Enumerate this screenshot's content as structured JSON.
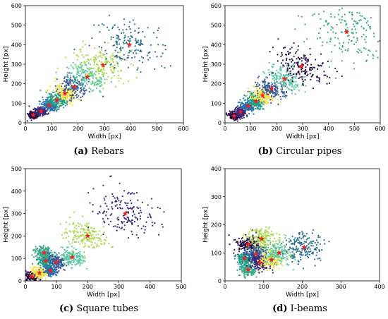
{
  "chart_data": [
    {
      "type": "scatter",
      "caption_letter": "(a)",
      "caption_text": " Rebars",
      "xlabel": "Width [px]",
      "ylabel": "Height [px]",
      "xlim": [
        0,
        600
      ],
      "ylim": [
        0,
        600
      ],
      "xticks": [
        0,
        100,
        200,
        300,
        400,
        500,
        600
      ],
      "yticks": [
        0,
        100,
        200,
        300,
        400,
        500,
        600
      ],
      "grid": false,
      "centroids": [
        [
          30,
          40
        ],
        [
          60,
          60
        ],
        [
          90,
          90
        ],
        [
          120,
          115
        ],
        [
          150,
          150
        ],
        [
          185,
          185
        ],
        [
          235,
          235
        ],
        [
          295,
          295
        ],
        [
          395,
          400
        ]
      ],
      "cluster_colors": [
        "#2c0f4a",
        "#3b2a7a",
        "#2f6ea8",
        "#1f9e8a",
        "#f5e04a",
        "#3b5a9a",
        "#5bc8a0",
        "#a8d84a",
        "#2a6f8f"
      ]
    },
    {
      "type": "scatter",
      "caption_letter": "(b)",
      "caption_text": " Circular pipes",
      "xlabel": "Width [px]",
      "ylabel": "Height [px]",
      "xlim": [
        0,
        600
      ],
      "ylim": [
        0,
        600
      ],
      "xticks": [
        0,
        100,
        200,
        300,
        400,
        500,
        600
      ],
      "yticks": [
        0,
        100,
        200,
        300,
        400,
        500,
        600
      ],
      "grid": false,
      "centroids": [
        [
          35,
          35
        ],
        [
          60,
          55
        ],
        [
          90,
          85
        ],
        [
          120,
          110
        ],
        [
          145,
          140
        ],
        [
          180,
          175
        ],
        [
          230,
          225
        ],
        [
          295,
          290
        ],
        [
          470,
          465
        ]
      ],
      "cluster_colors": [
        "#2c0f4a",
        "#3b2a7a",
        "#2f6ea8",
        "#1f9e8a",
        "#f5e04a",
        "#3b5a9a",
        "#5bc8a0",
        "#2c0f4a",
        "#3aa88a"
      ]
    },
    {
      "type": "scatter",
      "caption_letter": "(c)",
      "caption_text": " Square tubes",
      "xlabel": "Width [px]",
      "ylabel": "Height [px]",
      "xlim": [
        0,
        500
      ],
      "ylim": [
        0,
        500
      ],
      "xticks": [
        0,
        100,
        200,
        300,
        400,
        500
      ],
      "yticks": [
        0,
        100,
        200,
        300,
        400,
        500
      ],
      "grid": false,
      "centroids": [
        [
          20,
          20
        ],
        [
          45,
          35
        ],
        [
          80,
          45
        ],
        [
          65,
          90
        ],
        [
          60,
          125
        ],
        [
          100,
          85
        ],
        [
          150,
          105
        ],
        [
          200,
          200
        ],
        [
          320,
          300
        ]
      ],
      "cluster_colors": [
        "#2c0f4a",
        "#f5e04a",
        "#2f6ea8",
        "#1f9e8a",
        "#3aa88a",
        "#3b5a9a",
        "#5bc8a0",
        "#a8d84a",
        "#3b2a7a"
      ]
    },
    {
      "type": "scatter",
      "caption_letter": "(d)",
      "caption_text": " I-beams",
      "xlabel": "Width [px]",
      "ylabel": "Height [px]",
      "xlim": [
        0,
        400
      ],
      "ylim": [
        0,
        400
      ],
      "xticks": [
        0,
        100,
        200,
        300,
        400
      ],
      "yticks": [
        0,
        100,
        200,
        300,
        400
      ],
      "grid": false,
      "centroids": [
        [
          60,
          130
        ],
        [
          95,
          150
        ],
        [
          50,
          80
        ],
        [
          80,
          95
        ],
        [
          60,
          40
        ],
        [
          90,
          65
        ],
        [
          120,
          75
        ],
        [
          140,
          100
        ],
        [
          205,
          120
        ]
      ],
      "cluster_colors": [
        "#2c0f4a",
        "#a8d84a",
        "#1f9e8a",
        "#3b5a9a",
        "#3aa88a",
        "#3b2a7a",
        "#f5e04a",
        "#5bc8a0",
        "#2a6f8f"
      ]
    }
  ]
}
